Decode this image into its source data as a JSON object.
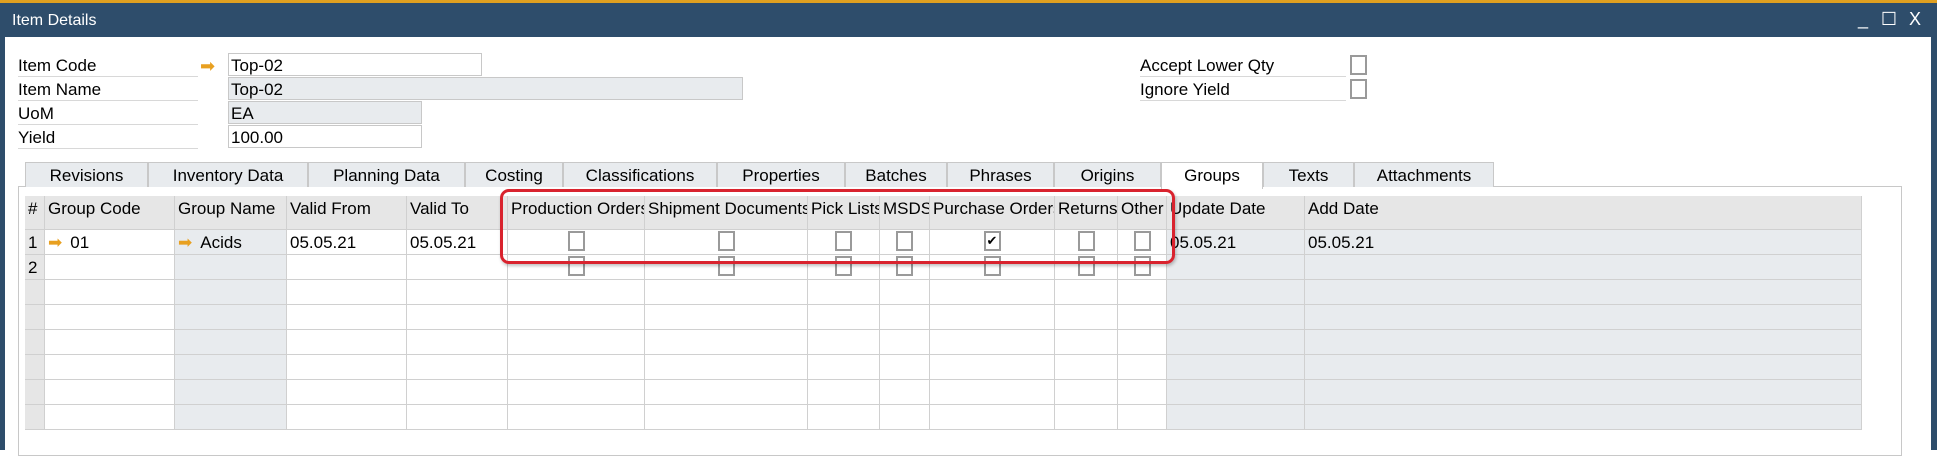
{
  "window": {
    "title": "Item Details",
    "controls": [
      "_",
      "☐",
      "X"
    ]
  },
  "header": {
    "item_code": {
      "label": "Item Code",
      "value": "Top-02"
    },
    "item_name": {
      "label": "Item Name",
      "value": "Top-02"
    },
    "uom": {
      "label": "UoM",
      "value": "EA"
    },
    "yield": {
      "label": "Yield",
      "value": "100.00"
    },
    "accept_lower_qty": {
      "label": "Accept Lower Qty",
      "checked": false
    },
    "ignore_yield": {
      "label": "Ignore Yield",
      "checked": false
    }
  },
  "tabs": [
    {
      "label": "Revisions"
    },
    {
      "label": "Inventory Data"
    },
    {
      "label": "Planning Data"
    },
    {
      "label": "Costing"
    },
    {
      "label": "Classifications"
    },
    {
      "label": "Properties"
    },
    {
      "label": "Batches"
    },
    {
      "label": "Phrases"
    },
    {
      "label": "Origins"
    },
    {
      "label": "Groups",
      "active": true
    },
    {
      "label": "Texts"
    },
    {
      "label": "Attachments"
    }
  ],
  "grid": {
    "columns": [
      "#",
      "Group Code",
      "Group Name",
      "Valid From",
      "Valid To",
      "Production Orders",
      "Shipment Documents",
      "Pick Lists",
      "MSDS",
      "Purchase Orders",
      "Returns",
      "Other",
      "Update Date",
      "Add Date"
    ],
    "rows": [
      {
        "num": "1",
        "group_code": "01",
        "group_name": "Acids",
        "valid_from": "05.05.21",
        "valid_to": "05.05.21",
        "checks": [
          false,
          false,
          false,
          false,
          true,
          false,
          false
        ],
        "update_date": "05.05.21",
        "add_date": "05.05.21"
      },
      {
        "num": "2",
        "group_code": "",
        "group_name": "",
        "valid_from": "",
        "valid_to": "",
        "checks": [
          false,
          false,
          false,
          false,
          false,
          false,
          false
        ],
        "update_date": "",
        "add_date": ""
      }
    ]
  },
  "colors": {
    "titlebar": "#2e4d6b",
    "accent": "#e0a020",
    "highlight": "#d9232e"
  }
}
